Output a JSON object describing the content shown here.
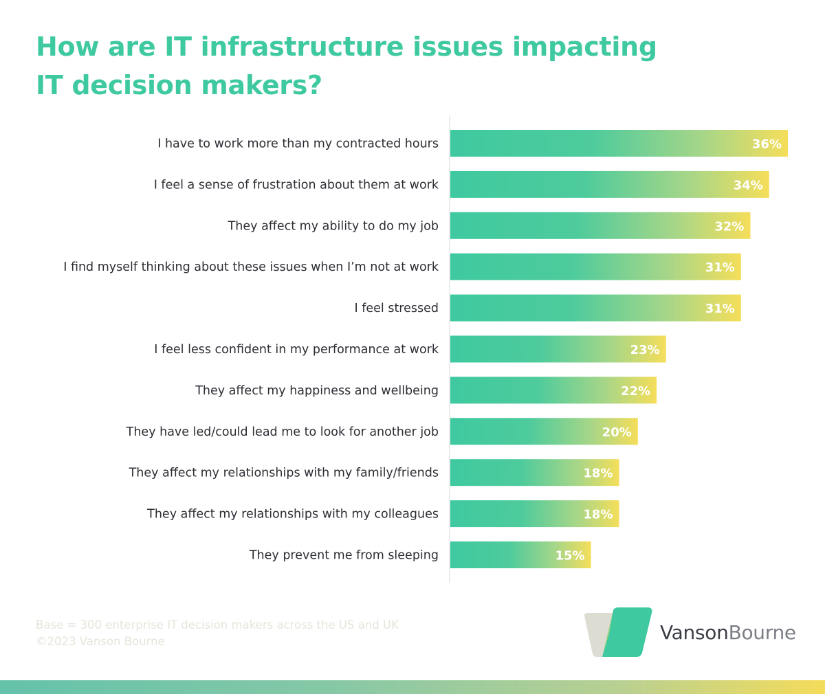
{
  "title": {
    "line1": "How are IT infrastructure issues impacting",
    "line2": "IT decision makers?"
  },
  "footnote": {
    "base": "Base = 300 enterprise IT decision makers across the US and UK",
    "copyright": "©2023 Vanson Bourne"
  },
  "logo": {
    "part1": "Vanson",
    "part2": "Bourne"
  },
  "colors": {
    "title": "#3fc9a0",
    "bar_start": "#3fc9a0",
    "bar_end": "#f5de5a",
    "axis": "#d8d8d8",
    "label": "#2b2d33"
  },
  "chart_data": {
    "type": "bar",
    "orientation": "horizontal",
    "categories": [
      "I have to work more than my contracted hours",
      "I feel a sense of frustration about them at work",
      "They affect my ability to do my job",
      "I find myself thinking about these issues when I’m not at work",
      "I feel stressed",
      "I feel less confident in my performance at work",
      "They affect my happiness and wellbeing",
      "They have led/could lead me to look for another job",
      "They affect my relationships with my family/friends",
      "They affect my relationships with my colleagues",
      "They prevent me from sleeping"
    ],
    "values": [
      36,
      34,
      32,
      31,
      31,
      23,
      22,
      20,
      18,
      18,
      15
    ],
    "value_labels": [
      "36%",
      "34%",
      "32%",
      "31%",
      "31%",
      "23%",
      "22%",
      "20%",
      "18%",
      "18%",
      "15%"
    ],
    "unit": "%",
    "xlim": [
      0,
      36
    ],
    "grid": false,
    "legend": "none"
  }
}
